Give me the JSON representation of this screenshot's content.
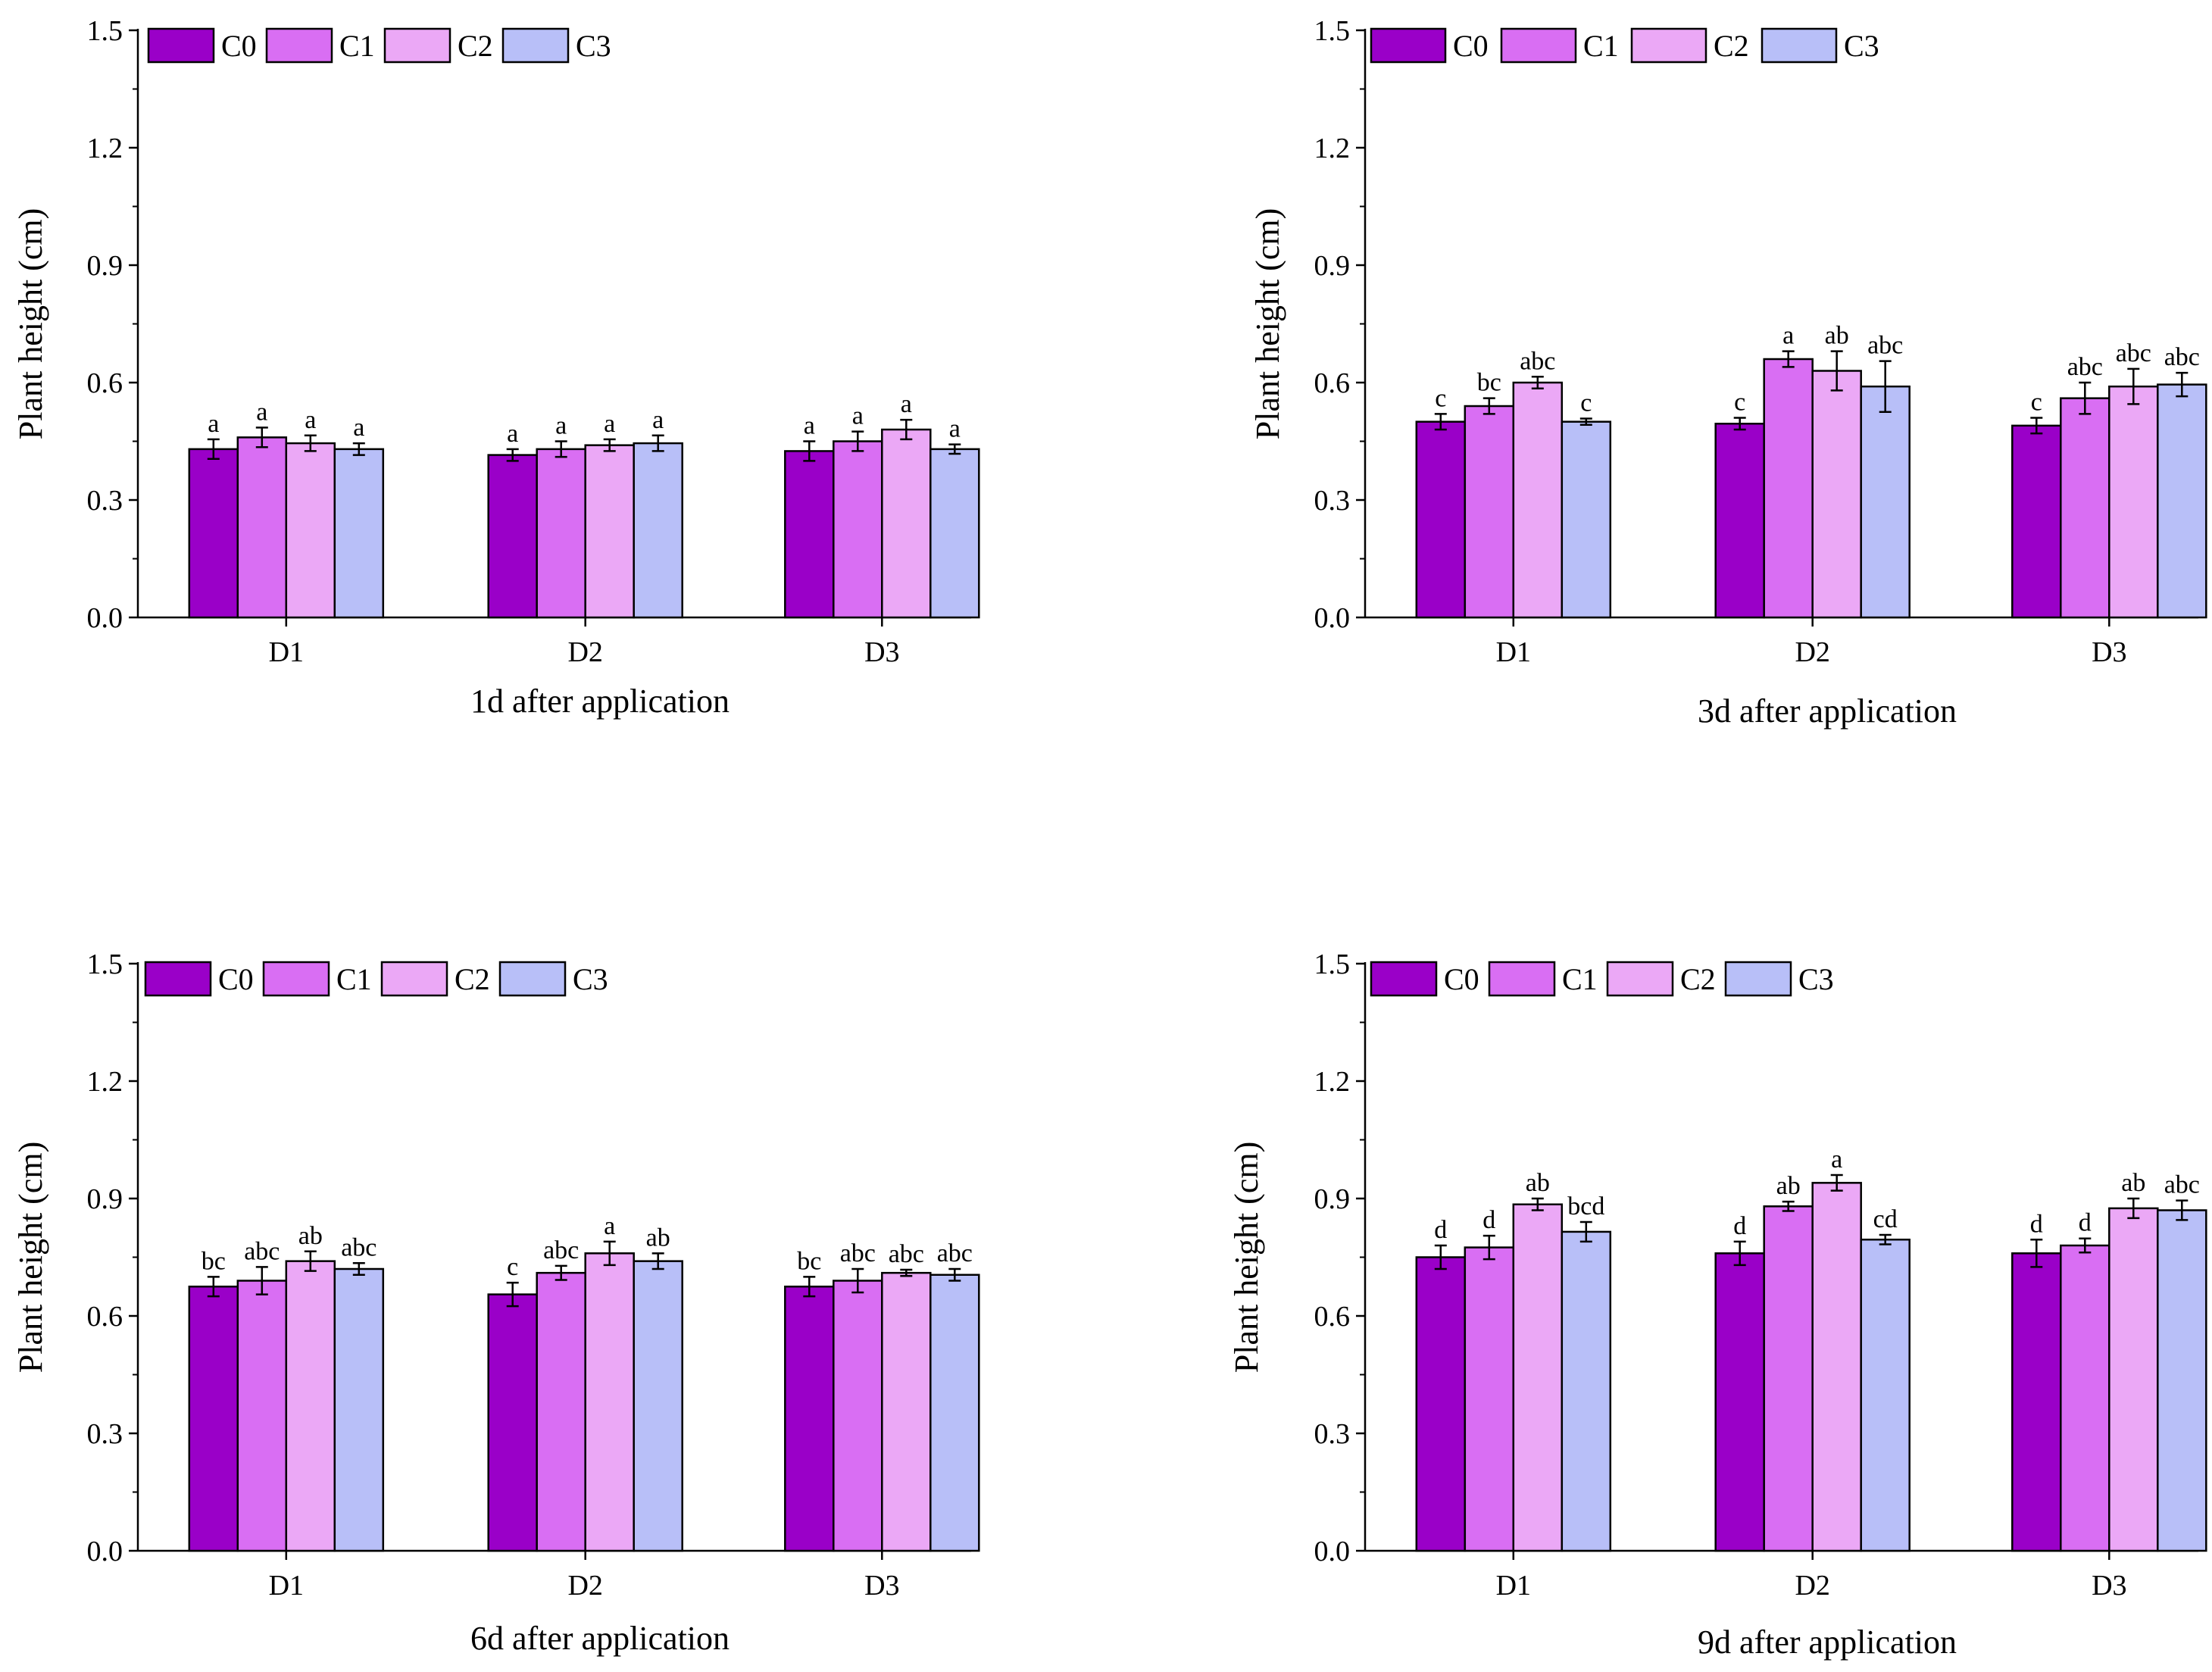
{
  "colors": {
    "C0": "#9a00c8",
    "C1": "#d96ef3",
    "C2": "#eba8f6",
    "C3": "#b8bff8"
  },
  "chart_data": [
    {
      "type": "bar",
      "title": "1d after application",
      "ylabel": "Plant height (cm)",
      "xlabel": "1d after application",
      "ylim": [
        0,
        1.5
      ],
      "yticks": [
        "0.0",
        "0.3",
        "0.6",
        "0.9",
        "1.2",
        "1.5"
      ],
      "categories": [
        "D1",
        "D2",
        "D3"
      ],
      "legend": [
        "C0",
        "C1",
        "C2",
        "C3"
      ],
      "series": [
        {
          "name": "C0",
          "values": [
            0.43,
            0.415,
            0.425
          ],
          "errors": [
            0.025,
            0.015,
            0.025
          ],
          "letters": [
            "a",
            "a",
            "a"
          ]
        },
        {
          "name": "C1",
          "values": [
            0.46,
            0.43,
            0.45
          ],
          "errors": [
            0.025,
            0.02,
            0.025
          ],
          "letters": [
            "a",
            "a",
            "a"
          ]
        },
        {
          "name": "C2",
          "values": [
            0.445,
            0.44,
            0.48
          ],
          "errors": [
            0.02,
            0.015,
            0.025
          ],
          "letters": [
            "a",
            "a",
            "a"
          ]
        },
        {
          "name": "C3",
          "values": [
            0.43,
            0.445,
            0.43
          ],
          "errors": [
            0.015,
            0.02,
            0.012
          ],
          "letters": [
            "a",
            "a",
            "a"
          ]
        }
      ]
    },
    {
      "type": "bar",
      "title": "3d after application",
      "ylabel": "Plant height (cm)",
      "xlabel": "3d after application",
      "ylim": [
        0,
        1.5
      ],
      "yticks": [
        "0.0",
        "0.3",
        "0.6",
        "0.9",
        "1.2",
        "1.5"
      ],
      "categories": [
        "D1",
        "D2",
        "D3"
      ],
      "legend": [
        "C0",
        "C1",
        "C2",
        "C3"
      ],
      "series": [
        {
          "name": "C0",
          "values": [
            0.5,
            0.495,
            0.49
          ],
          "errors": [
            0.02,
            0.015,
            0.02
          ],
          "letters": [
            "c",
            "c",
            "c"
          ]
        },
        {
          "name": "C1",
          "values": [
            0.54,
            0.66,
            0.56
          ],
          "errors": [
            0.02,
            0.02,
            0.04
          ],
          "letters": [
            "bc",
            "a",
            "abc"
          ]
        },
        {
          "name": "C2",
          "values": [
            0.6,
            0.63,
            0.59
          ],
          "errors": [
            0.015,
            0.05,
            0.045
          ],
          "letters": [
            "abc",
            "ab",
            "abc"
          ]
        },
        {
          "name": "C3",
          "values": [
            0.5,
            0.59,
            0.595
          ],
          "errors": [
            0.008,
            0.065,
            0.03
          ],
          "letters": [
            "c",
            "abc",
            "abc"
          ]
        }
      ]
    },
    {
      "type": "bar",
      "title": "6d after application",
      "ylabel": "Plant height (cm)",
      "xlabel": "6d after application",
      "ylim": [
        0,
        1.5
      ],
      "yticks": [
        "0.0",
        "0.3",
        "0.6",
        "0.9",
        "1.2",
        "1.5"
      ],
      "categories": [
        "D1",
        "D2",
        "D3"
      ],
      "legend": [
        "C0",
        "C1",
        "C2",
        "C3"
      ],
      "series": [
        {
          "name": "C0",
          "values": [
            0.675,
            0.655,
            0.675
          ],
          "errors": [
            0.025,
            0.03,
            0.025
          ],
          "letters": [
            "bc",
            "c",
            "bc"
          ]
        },
        {
          "name": "C1",
          "values": [
            0.69,
            0.71,
            0.69
          ],
          "errors": [
            0.035,
            0.018,
            0.03
          ],
          "letters": [
            "abc",
            "abc",
            "abc"
          ]
        },
        {
          "name": "C2",
          "values": [
            0.74,
            0.76,
            0.71
          ],
          "errors": [
            0.025,
            0.03,
            0.008
          ],
          "letters": [
            "ab",
            "a",
            "abc"
          ]
        },
        {
          "name": "C3",
          "values": [
            0.72,
            0.74,
            0.705
          ],
          "errors": [
            0.015,
            0.02,
            0.015
          ],
          "letters": [
            "abc",
            "ab",
            "abc"
          ]
        }
      ]
    },
    {
      "type": "bar",
      "title": "9d after application",
      "ylabel": "Plant height (cm)",
      "xlabel": "9d after application",
      "ylim": [
        0,
        1.5
      ],
      "yticks": [
        "0.0",
        "0.3",
        "0.6",
        "0.9",
        "1.2",
        "1.5"
      ],
      "categories": [
        "D1",
        "D2",
        "D3"
      ],
      "legend": [
        "C0",
        "C1",
        "C2",
        "C3"
      ],
      "series": [
        {
          "name": "C0",
          "values": [
            0.75,
            0.76,
            0.76
          ],
          "errors": [
            0.03,
            0.03,
            0.035
          ],
          "letters": [
            "d",
            "d",
            "d"
          ]
        },
        {
          "name": "C1",
          "values": [
            0.775,
            0.88,
            0.78
          ],
          "errors": [
            0.03,
            0.012,
            0.018
          ],
          "letters": [
            "d",
            "ab",
            "d"
          ]
        },
        {
          "name": "C2",
          "values": [
            0.885,
            0.94,
            0.875
          ],
          "errors": [
            0.015,
            0.02,
            0.025
          ],
          "letters": [
            "ab",
            "a",
            "ab"
          ]
        },
        {
          "name": "C3",
          "values": [
            0.815,
            0.795,
            0.87
          ],
          "errors": [
            0.025,
            0.012,
            0.025
          ],
          "letters": [
            "bcd",
            "cd",
            "abc"
          ]
        }
      ]
    }
  ]
}
